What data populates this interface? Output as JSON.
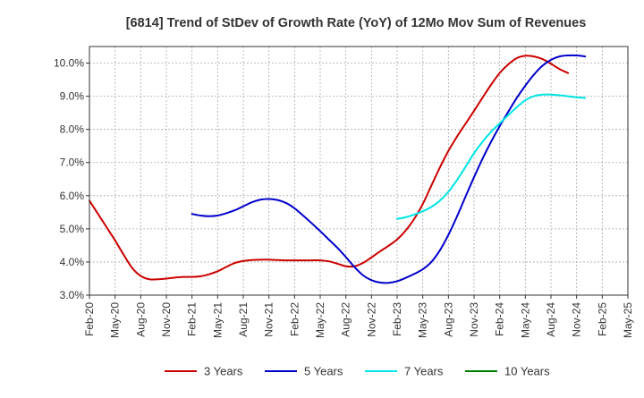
{
  "chart_data": {
    "type": "line",
    "title": "[6814]  Trend of StDev of Growth Rate (YoY) of 12Mo Mov Sum of Revenues",
    "xlabel": "",
    "ylabel": "",
    "ylim": [
      3.0,
      10.5
    ],
    "grid": true,
    "legend_position": "bottom",
    "y_ticks": [
      3.0,
      4.0,
      5.0,
      6.0,
      7.0,
      8.0,
      9.0,
      10.0
    ],
    "y_tick_labels": [
      "3.0%",
      "4.0%",
      "5.0%",
      "6.0%",
      "7.0%",
      "8.0%",
      "9.0%",
      "10.0%"
    ],
    "x_tick_labels": [
      "Feb-20",
      "May-20",
      "Aug-20",
      "Nov-20",
      "Feb-21",
      "May-21",
      "Aug-21",
      "Nov-21",
      "Feb-22",
      "May-22",
      "Aug-22",
      "Nov-22",
      "Feb-23",
      "May-23",
      "Aug-23",
      "Nov-23",
      "Feb-24",
      "May-24",
      "Aug-24",
      "Nov-24",
      "Feb-25",
      "May-25"
    ],
    "series": [
      {
        "name": "3 Years",
        "color": "#cc0000",
        "start_index": 0,
        "values": [
          5.85,
          5.45,
          5.05,
          4.65,
          4.22,
          3.82,
          3.58,
          3.48,
          3.48,
          3.5,
          3.53,
          3.55,
          3.55,
          3.57,
          3.63,
          3.72,
          3.85,
          3.97,
          4.03,
          4.06,
          4.07,
          4.07,
          4.06,
          4.05,
          4.05,
          4.05,
          4.05,
          4.05,
          4.02,
          3.95,
          3.87,
          3.87,
          3.97,
          4.14,
          4.32,
          4.49,
          4.68,
          4.95,
          5.3,
          5.75,
          6.3,
          6.85,
          7.35,
          7.78,
          8.17,
          8.56,
          8.96,
          9.35,
          9.7,
          9.96,
          10.15,
          10.22,
          10.2,
          10.12,
          9.98,
          9.82,
          9.7
        ]
      },
      {
        "name": "5 Years",
        "color": "#0000cc",
        "start_index": 12,
        "values": [
          5.45,
          5.4,
          5.38,
          5.4,
          5.47,
          5.56,
          5.68,
          5.8,
          5.88,
          5.9,
          5.87,
          5.78,
          5.62,
          5.4,
          5.17,
          4.93,
          4.68,
          4.43,
          4.15,
          3.85,
          3.6,
          3.45,
          3.38,
          3.37,
          3.42,
          3.52,
          3.64,
          3.78,
          4.0,
          4.35,
          4.82,
          5.37,
          5.97,
          6.56,
          7.12,
          7.63,
          8.1,
          8.53,
          8.95,
          9.32,
          9.65,
          9.92,
          10.1,
          10.2,
          10.23,
          10.23,
          10.2
        ]
      },
      {
        "name": "7 Years",
        "color": "#00e5e5",
        "start_index": 36,
        "values": [
          5.3,
          5.35,
          5.43,
          5.53,
          5.66,
          5.85,
          6.12,
          6.47,
          6.87,
          7.28,
          7.63,
          7.93,
          8.18,
          8.43,
          8.67,
          8.88,
          9.0,
          9.05,
          9.05,
          9.03,
          9.0,
          8.97,
          8.95
        ]
      },
      {
        "name": "10 Years",
        "color": "#008000",
        "start_index": 0,
        "values": []
      }
    ]
  }
}
